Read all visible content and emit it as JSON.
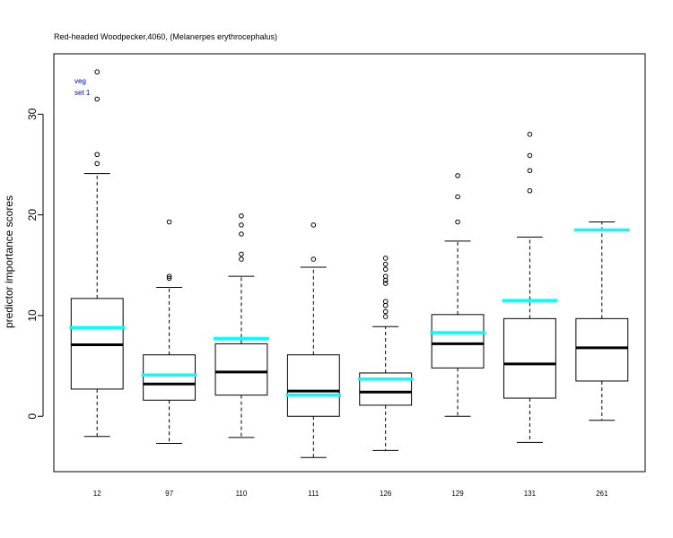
{
  "chart_data": {
    "type": "boxplot",
    "title": "Red-headed Woodpecker,4060, (Melanerpes erythrocephalus)",
    "ylabel": "predictor importance scores",
    "xlabel": "",
    "legend": [
      "veg",
      "set 1"
    ],
    "legend_position": "top-left",
    "ylim": [
      -5.5,
      36
    ],
    "yticks": [
      0,
      10,
      20,
      30
    ],
    "categories": [
      "12",
      "97",
      "110",
      "111",
      "126",
      "129",
      "131",
      "261"
    ],
    "boxes": [
      {
        "label": "12",
        "whisker_low": -2.0,
        "q1": 2.7,
        "median": 7.1,
        "q3": 11.7,
        "whisker_high": 24.1,
        "outliers": [
          25.1,
          26.0,
          31.5,
          34.2
        ],
        "highlight": 8.8
      },
      {
        "label": "97",
        "whisker_low": -2.7,
        "q1": 1.6,
        "median": 3.2,
        "q3": 6.1,
        "whisker_high": 12.8,
        "outliers": [
          13.7,
          13.9,
          19.3
        ],
        "highlight": 4.1
      },
      {
        "label": "110",
        "whisker_low": -2.1,
        "q1": 2.1,
        "median": 4.4,
        "q3": 7.2,
        "whisker_high": 13.9,
        "outliers": [
          15.6,
          16.1,
          18.1,
          19.0,
          19.9
        ],
        "highlight": 7.7
      },
      {
        "label": "111",
        "whisker_low": -4.1,
        "q1": 0.0,
        "median": 2.5,
        "q3": 6.1,
        "whisker_high": 14.8,
        "outliers": [
          15.6,
          19.0
        ],
        "highlight": 2.1
      },
      {
        "label": "126",
        "whisker_low": -3.4,
        "q1": 1.1,
        "median": 2.4,
        "q3": 4.3,
        "whisker_high": 8.9,
        "outliers": [
          9.9,
          10.4,
          11.0,
          11.4,
          13.2,
          13.5,
          13.9,
          14.6,
          15.1,
          15.7
        ],
        "highlight": 3.7
      },
      {
        "label": "129",
        "whisker_low": 0.0,
        "q1": 4.8,
        "median": 7.2,
        "q3": 10.1,
        "whisker_high": 17.4,
        "outliers": [
          19.3,
          21.8,
          23.9
        ],
        "highlight": 8.3
      },
      {
        "label": "131",
        "whisker_low": -2.6,
        "q1": 1.8,
        "median": 5.2,
        "q3": 9.7,
        "whisker_high": 17.8,
        "outliers": [
          22.4,
          24.4,
          25.9,
          28.0
        ],
        "highlight": 11.5
      },
      {
        "label": "261",
        "whisker_low": -0.4,
        "q1": 3.5,
        "median": 6.8,
        "q3": 9.7,
        "whisker_high": 19.3,
        "outliers": [],
        "highlight": 18.5
      }
    ],
    "highlight_color": "#00ffff",
    "legend_color": "#0000cc",
    "grid": false
  }
}
